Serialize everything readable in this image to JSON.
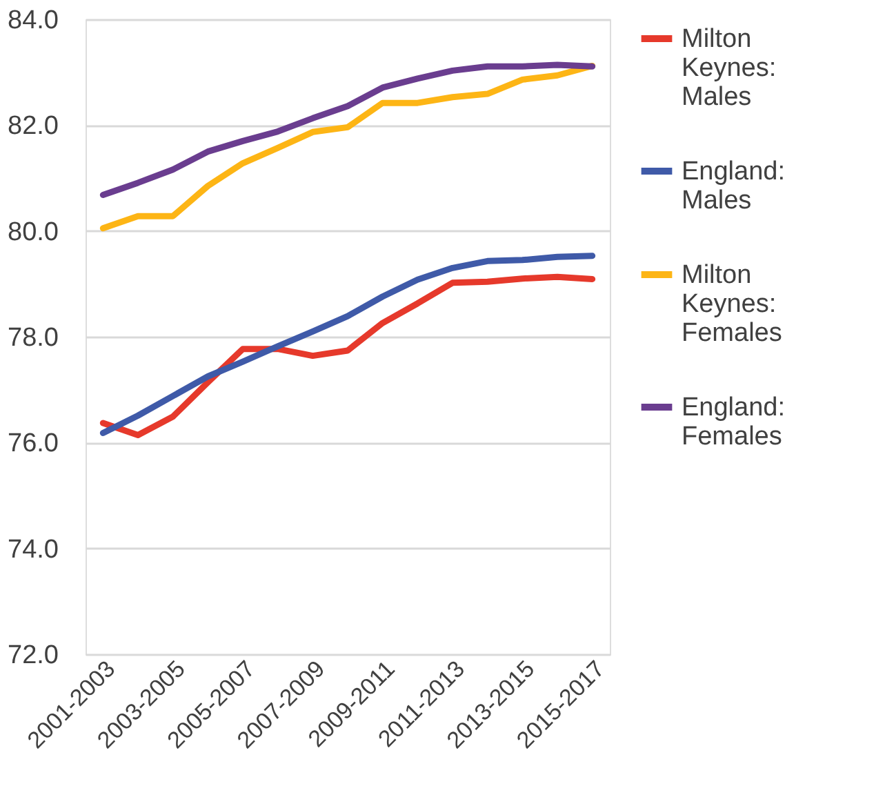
{
  "chart_data": {
    "type": "line",
    "categories": [
      "2001-2003",
      null,
      "2003-2005",
      null,
      "2005-2007",
      null,
      "2007-2009",
      null,
      "2009-2011",
      null,
      "2011-2013",
      null,
      "2013-2015",
      null,
      "2015-2017"
    ],
    "series": [
      {
        "name": "Milton Keynes: Males",
        "color": "#e6392b",
        "values": [
          76.37,
          76.14,
          76.49,
          77.14,
          77.77,
          77.77,
          77.64,
          77.74,
          78.26,
          78.63,
          79.02,
          79.04,
          79.1,
          79.13,
          79.09
        ]
      },
      {
        "name": "England: Males",
        "color": "#3f5aa8",
        "values": [
          76.18,
          76.51,
          76.88,
          77.25,
          77.53,
          77.82,
          78.1,
          78.39,
          78.76,
          79.08,
          79.3,
          79.43,
          79.45,
          79.51,
          79.53
        ]
      },
      {
        "name": "Milton Keynes: Females",
        "color": "#fdb515",
        "values": [
          80.05,
          80.28,
          80.28,
          80.85,
          81.28,
          81.57,
          81.87,
          81.96,
          82.42,
          82.42,
          82.53,
          82.59,
          82.86,
          82.94,
          83.12
        ]
      },
      {
        "name": "England: Females",
        "color": "#6a3d8f",
        "values": [
          80.68,
          80.91,
          81.16,
          81.5,
          81.7,
          81.88,
          82.13,
          82.36,
          82.71,
          82.88,
          83.03,
          83.11,
          83.11,
          83.14,
          83.11
        ]
      }
    ],
    "ylim": [
      72,
      84
    ],
    "yticks": [
      {
        "value": 72,
        "label": "72.0"
      },
      {
        "value": 74,
        "label": "74.0"
      },
      {
        "value": 76,
        "label": "76.0"
      },
      {
        "value": 78,
        "label": "78.0"
      },
      {
        "value": 80,
        "label": "80.0"
      },
      {
        "value": 82,
        "label": "82.0"
      },
      {
        "value": 84,
        "label": "84.0"
      }
    ],
    "grid": "y",
    "legend": "right",
    "marker": "none",
    "line_style": "solid"
  }
}
